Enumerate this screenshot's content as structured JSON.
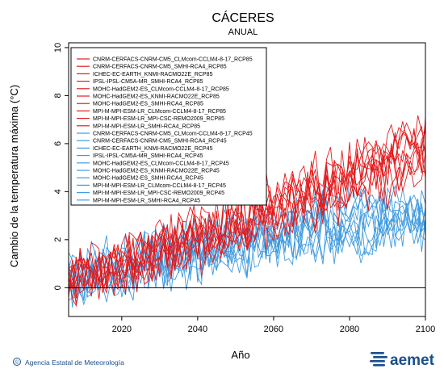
{
  "chart_data": {
    "type": "line",
    "title": "CÁCERES",
    "subtitle": "ANUAL",
    "xlabel": "Año",
    "ylabel": "Cambio de la temperatura máxima (°C)",
    "xlim": [
      2006,
      2100
    ],
    "ylim": [
      -1.2,
      10.2
    ],
    "x_ticks": [
      2020,
      2040,
      2060,
      2080,
      2100
    ],
    "y_ticks": [
      0,
      2,
      4,
      6,
      8,
      10
    ],
    "zero_line": 0,
    "grid": false,
    "legend_position": "top-left",
    "colors": {
      "rcp85": "#e31a1c",
      "rcp45": "#3f9be0",
      "zero": "#000000"
    },
    "series": [
      {
        "name": "CNRM-CERFACS-CNRM-CM5_CLMcom-CCLM4-8-17_RCP85",
        "scenario": "rcp85",
        "trend": {
          "2006": 0.3,
          "2030": 1.3,
          "2050": 2.5,
          "2070": 3.9,
          "2090": 5.2,
          "2100": 5.8
        }
      },
      {
        "name": "CNRM-CERFACS-CNRM-CM5_SMHI-RCA4_RCP85",
        "scenario": "rcp85",
        "trend": {
          "2006": 0.4,
          "2030": 1.5,
          "2050": 2.8,
          "2070": 4.2,
          "2090": 5.5,
          "2100": 6.1
        }
      },
      {
        "name": "ICHEC-EC-EARTH_KNMI-RACMO22E_RCP85",
        "scenario": "rcp85",
        "trend": {
          "2006": 0.2,
          "2030": 1.2,
          "2050": 2.4,
          "2070": 3.6,
          "2090": 4.9,
          "2100": 5.4
        }
      },
      {
        "name": "IPSL-IPSL-CM5A-MR_SMHI-RCA4_RCP85",
        "scenario": "rcp85",
        "trend": {
          "2006": 0.5,
          "2030": 1.7,
          "2050": 3.0,
          "2070": 4.6,
          "2090": 6.0,
          "2100": 6.6
        }
      },
      {
        "name": "MOHC-HadGEM2-ES_CLMcom-CCLM4-8-17_RCP85",
        "scenario": "rcp85",
        "trend": {
          "2006": 0.4,
          "2030": 1.6,
          "2050": 2.9,
          "2070": 4.4,
          "2090": 5.8,
          "2100": 6.4
        }
      },
      {
        "name": "MOHC-HadGEM2-ES_KNMI-RACMO22E_RCP85",
        "scenario": "rcp85",
        "trend": {
          "2006": 0.3,
          "2030": 1.4,
          "2050": 2.7,
          "2070": 4.1,
          "2090": 5.4,
          "2100": 6.0
        }
      },
      {
        "name": "MOHC-HadGEM2-ES_SMHI-RCA4_RCP85",
        "scenario": "rcp85",
        "trend": {
          "2006": 0.5,
          "2030": 1.8,
          "2050": 3.1,
          "2070": 4.5,
          "2090": 5.9,
          "2100": 6.5
        }
      },
      {
        "name": "MPI-M-MPI-ESM-LR_CLMcom-CCLM4-8-17_RCP85",
        "scenario": "rcp85",
        "trend": {
          "2006": 0.2,
          "2030": 1.2,
          "2050": 2.3,
          "2070": 3.5,
          "2090": 4.7,
          "2100": 5.2
        }
      },
      {
        "name": "MPI-M-MPI-ESM-LR_MPI-CSC-REMO2009_RCP85",
        "scenario": "rcp85",
        "trend": {
          "2006": 0.3,
          "2030": 1.3,
          "2050": 2.4,
          "2070": 3.7,
          "2090": 4.9,
          "2100": 5.4
        }
      },
      {
        "name": "MPI-M-MPI-ESM-LR_SMHI-RCA4_RCP85",
        "scenario": "rcp85",
        "trend": {
          "2006": 0.2,
          "2030": 1.1,
          "2050": 2.2,
          "2070": 3.4,
          "2090": 4.5,
          "2100": 5.0
        }
      },
      {
        "name": "CNRM-CERFACS-CNRM-CM5_CLMcom-CCLM4-8-17_RCP45",
        "scenario": "rcp45",
        "trend": {
          "2006": 0.3,
          "2030": 1.1,
          "2050": 1.8,
          "2070": 2.3,
          "2090": 2.6,
          "2100": 2.7
        }
      },
      {
        "name": "CNRM-CERFACS-CNRM-CM5_SMHI-RCA4_RCP45",
        "scenario": "rcp45",
        "trend": {
          "2006": 0.4,
          "2030": 1.2,
          "2050": 1.9,
          "2070": 2.5,
          "2090": 2.8,
          "2100": 2.9
        }
      },
      {
        "name": "ICHEC-EC-EARTH_KNMI-RACMO22E_RCP45",
        "scenario": "rcp45",
        "trend": {
          "2006": 0.2,
          "2030": 1.0,
          "2050": 1.7,
          "2070": 2.2,
          "2090": 2.5,
          "2100": 2.6
        }
      },
      {
        "name": "IPSL-IPSL-CM5A-MR_SMHI-RCA4_RCP45",
        "scenario": "rcp45",
        "trend": {
          "2006": 0.4,
          "2030": 1.3,
          "2050": 2.1,
          "2070": 2.8,
          "2090": 3.1,
          "2100": 3.2
        }
      },
      {
        "name": "MOHC-HadGEM2-ES_CLMcom-CCLM4-8-17_RCP45",
        "scenario": "rcp45",
        "trend": {
          "2006": 0.4,
          "2030": 1.3,
          "2050": 2.2,
          "2070": 2.9,
          "2090": 3.3,
          "2100": 3.4
        }
      },
      {
        "name": "MOHC-HadGEM2-ES_KNMI-RACMO22E_RCP45",
        "scenario": "rcp45",
        "trend": {
          "2006": 0.3,
          "2030": 1.2,
          "2050": 2.0,
          "2070": 2.7,
          "2090": 3.0,
          "2100": 3.1
        }
      },
      {
        "name": "MOHC-HadGEM2-ES_SMHI-RCA4_RCP45",
        "scenario": "rcp45",
        "trend": {
          "2006": 0.5,
          "2030": 1.4,
          "2050": 2.2,
          "2070": 3.0,
          "2090": 3.3,
          "2100": 3.4
        }
      },
      {
        "name": "MPI-M-MPI-ESM-LR_CLMcom-CCLM4-8-17_RCP45",
        "scenario": "rcp45",
        "trend": {
          "2006": 0.2,
          "2030": 0.9,
          "2050": 1.6,
          "2070": 2.1,
          "2090": 2.4,
          "2100": 2.5
        }
      },
      {
        "name": "MPI-M-MPI-ESM-LR_MPI-CSC-REMO2009_RCP45",
        "scenario": "rcp45",
        "trend": {
          "2006": 0.3,
          "2030": 1.0,
          "2050": 1.7,
          "2070": 2.2,
          "2090": 2.5,
          "2100": 2.6
        }
      },
      {
        "name": "MPI-M-MPI-ESM-LR_SMHI-RCA4_RCP45",
        "scenario": "rcp45",
        "trend": {
          "2006": 0.2,
          "2030": 0.9,
          "2050": 1.5,
          "2070": 2.0,
          "2090": 2.3,
          "2100": 2.4
        }
      }
    ]
  },
  "footer": {
    "credit": "Agencia Estatal de Meteorología",
    "copyright_symbol": "©",
    "logo_text": "aemet"
  }
}
